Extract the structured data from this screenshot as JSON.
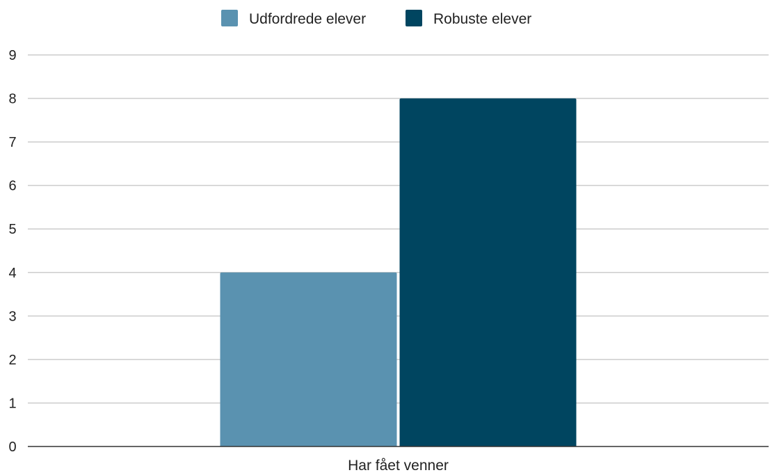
{
  "chart_data": {
    "type": "bar",
    "title": "",
    "xlabel": "",
    "ylabel": "",
    "categories": [
      "Har fået venner"
    ],
    "series": [
      {
        "name": "Udfordrede elever",
        "values": [
          4
        ],
        "color": "#5a92b0"
      },
      {
        "name": "Robuste elever",
        "values": [
          8
        ],
        "color": "#004560"
      }
    ],
    "ylim": [
      0,
      9
    ],
    "yticks": [
      0,
      1,
      2,
      3,
      4,
      5,
      6,
      7,
      8,
      9
    ],
    "grid": true,
    "legend_position": "top-center"
  },
  "colors": {
    "gridline": "#cccccc",
    "axis": "#333333",
    "text": "#222222"
  }
}
